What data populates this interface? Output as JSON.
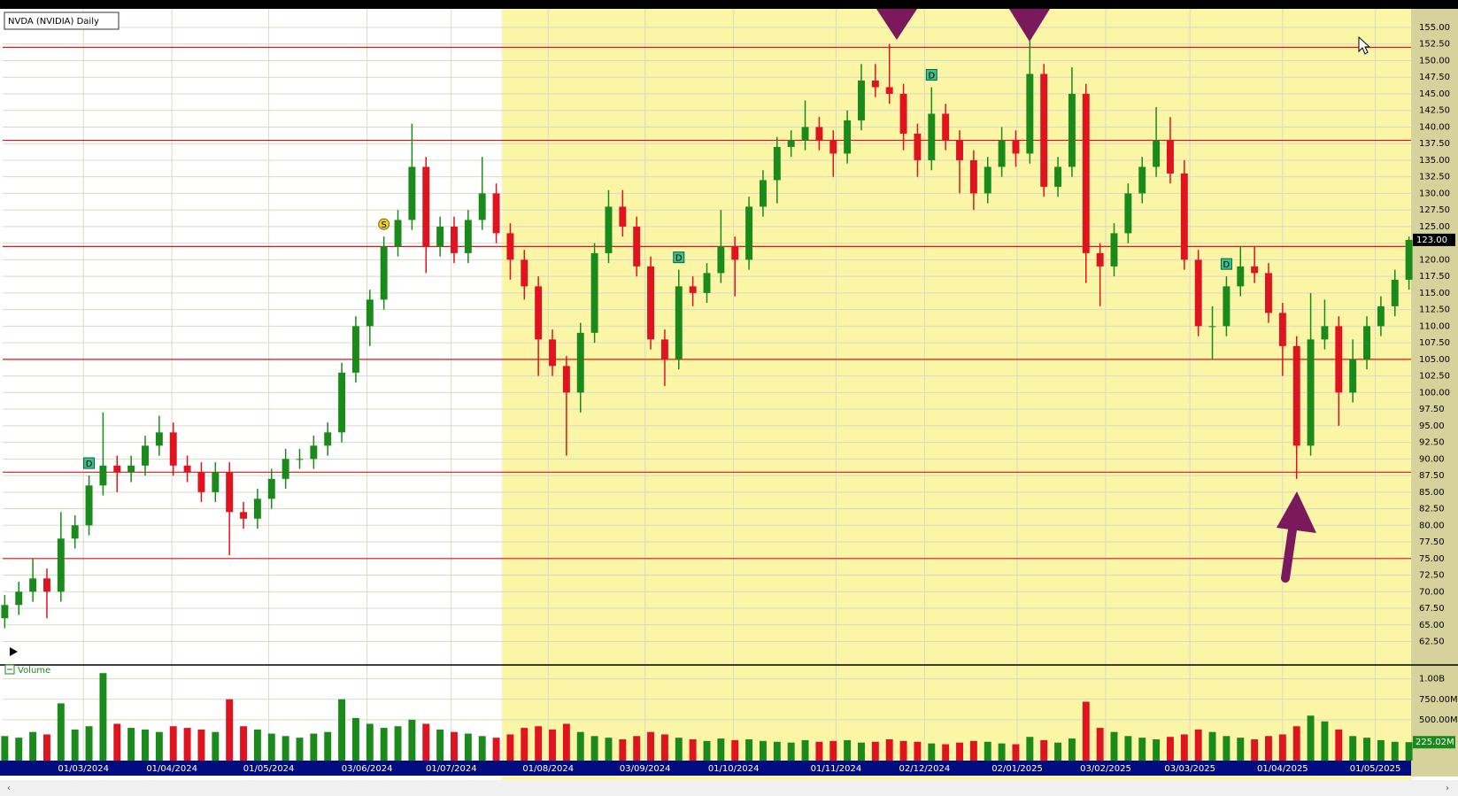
{
  "chart_data": {
    "type": "candlestick",
    "title": "NVDA (NVIDIA) Daily",
    "volume_title": "Volume",
    "open": [
      66,
      68,
      70,
      72,
      70,
      78,
      80,
      86,
      89,
      88,
      89,
      92,
      94,
      89,
      88,
      85,
      88,
      82,
      81,
      84,
      87,
      90,
      90,
      92,
      94,
      103,
      110,
      114,
      122,
      126,
      134,
      122,
      125,
      121,
      126,
      130,
      124,
      120,
      116,
      108,
      104,
      100,
      109,
      121,
      128,
      125,
      119,
      108,
      105,
      116,
      115,
      118,
      122,
      120,
      128,
      132,
      137,
      138,
      140,
      138,
      136,
      141,
      147,
      146,
      145,
      139,
      135,
      142,
      138,
      135,
      130,
      134,
      138,
      136,
      148,
      131,
      134,
      145,
      121,
      119,
      124,
      130,
      134,
      138,
      133,
      120,
      110,
      110,
      116,
      119,
      118,
      112,
      107,
      92,
      108,
      110,
      100,
      105,
      110,
      113,
      117
    ],
    "high": [
      69.5,
      71.5,
      75,
      73.5,
      82,
      81.5,
      87.5,
      97,
      90.5,
      90.5,
      93.5,
      96.5,
      95.5,
      90.5,
      89.5,
      89.5,
      89.5,
      83.5,
      85.5,
      88.5,
      91.5,
      91.5,
      93.5,
      95.5,
      104.5,
      111.5,
      115.5,
      123.5,
      127.5,
      140.5,
      135.5,
      126.5,
      126.5,
      127.5,
      135.5,
      131.5,
      125.5,
      121.5,
      117.5,
      109.5,
      105.5,
      110.5,
      122.5,
      130.5,
      130.5,
      126.5,
      120.5,
      109.5,
      118.5,
      117.5,
      119.5,
      127.5,
      123.5,
      129.5,
      133.5,
      138.5,
      139.5,
      144,
      141.5,
      139.5,
      142.5,
      149.5,
      149.5,
      152.5,
      146.5,
      140.5,
      146,
      143.5,
      139.5,
      136.5,
      135.5,
      140,
      139.5,
      153,
      149.5,
      135.5,
      149,
      146.5,
      122.5,
      125.5,
      131.5,
      135.5,
      143,
      141.5,
      135,
      121.5,
      113,
      117.5,
      122,
      122,
      119.5,
      113.5,
      108.5,
      115,
      114,
      111.5,
      108,
      111.5,
      114.5,
      118.5,
      123.5
    ],
    "low": [
      64.5,
      66.5,
      68.5,
      66,
      68.5,
      76.5,
      78.5,
      84.5,
      85,
      86.5,
      87.5,
      90.5,
      87.5,
      86.5,
      83.5,
      83.5,
      75.5,
      79.5,
      79.5,
      82.5,
      85.5,
      88.5,
      88.5,
      90.5,
      92.5,
      101.5,
      107,
      112.5,
      120.5,
      124.5,
      118,
      120.5,
      119.5,
      119.5,
      124.5,
      122.5,
      117,
      114,
      102.5,
      102.5,
      90.5,
      97,
      107.5,
      119.5,
      123.5,
      117.5,
      106.5,
      101,
      103.5,
      113,
      113.5,
      116.5,
      114.5,
      118.5,
      126.5,
      128.5,
      135.5,
      136.5,
      136.5,
      132.5,
      134.5,
      139.5,
      144.5,
      143.5,
      136.5,
      132.5,
      133.5,
      136.5,
      130,
      127.5,
      128.5,
      132.5,
      134,
      134.5,
      129.5,
      129.5,
      132.5,
      116.5,
      113,
      117.5,
      122.5,
      128.5,
      132.5,
      131.5,
      118.5,
      108.5,
      105,
      108.5,
      114.5,
      116.5,
      110.5,
      102.5,
      87,
      90.5,
      106.5,
      95,
      98.5,
      103.5,
      108.5,
      111.5,
      115.5
    ],
    "close": [
      68,
      70,
      72,
      70,
      78,
      80,
      86,
      89,
      88,
      89,
      92,
      94,
      89,
      88,
      85,
      88,
      82,
      81,
      84,
      87,
      90,
      90,
      92,
      94,
      103,
      110,
      114,
      122,
      126,
      134,
      122,
      125,
      121,
      126,
      130,
      124,
      120,
      116,
      108,
      104,
      100,
      109,
      121,
      128,
      125,
      119,
      108,
      105,
      116,
      115,
      118,
      122,
      120,
      128,
      132,
      137,
      138,
      140,
      138,
      136,
      141,
      147,
      146,
      145,
      139,
      135,
      142,
      138,
      135,
      130,
      134,
      138,
      136,
      148,
      131,
      134,
      145,
      121,
      119,
      124,
      130,
      134,
      138,
      133,
      120,
      110,
      110,
      116,
      119,
      118,
      112,
      107,
      92,
      108,
      110,
      100,
      105,
      110,
      113,
      117,
      123
    ],
    "volume": [
      300,
      280,
      350,
      320,
      700,
      380,
      420,
      1070,
      450,
      400,
      380,
      350,
      420,
      400,
      380,
      350,
      750,
      420,
      380,
      330,
      300,
      280,
      330,
      350,
      750,
      520,
      450,
      400,
      420,
      500,
      450,
      380,
      350,
      330,
      300,
      280,
      320,
      400,
      420,
      380,
      450,
      350,
      300,
      280,
      260,
      300,
      350,
      320,
      280,
      260,
      240,
      270,
      250,
      260,
      240,
      230,
      220,
      250,
      230,
      240,
      250,
      220,
      230,
      260,
      240,
      230,
      210,
      200,
      220,
      240,
      230,
      210,
      200,
      290,
      250,
      220,
      270,
      720,
      400,
      350,
      300,
      280,
      260,
      290,
      320,
      380,
      350,
      300,
      280,
      260,
      300,
      320,
      420,
      550,
      480,
      380,
      300,
      280,
      250,
      230,
      225.02
    ],
    "close_label": "123.00",
    "volume_label": "225.02M",
    "up_color": "#1a8a1a",
    "down_color": "#e0141e",
    "xlim": [
      -0.15,
      100.15
    ],
    "xticks": [
      {
        "value": 5.6,
        "label": "01/03/2024"
      },
      {
        "value": 11.9,
        "label": "01/04/2024"
      },
      {
        "value": 18.8,
        "label": "01/05/2024"
      },
      {
        "value": 25.8,
        "label": "03/06/2024"
      },
      {
        "value": 31.8,
        "label": "01/07/2024"
      },
      {
        "value": 38.7,
        "label": "01/08/2024"
      },
      {
        "value": 45.6,
        "label": "03/09/2024"
      },
      {
        "value": 51.9,
        "label": "01/10/2024"
      },
      {
        "value": 59.2,
        "label": "01/11/2024"
      },
      {
        "value": 65.5,
        "label": "02/12/2024"
      },
      {
        "value": 72.1,
        "label": "02/01/2025"
      },
      {
        "value": 78.4,
        "label": "03/02/2025"
      },
      {
        "value": 84.4,
        "label": "03/03/2025"
      },
      {
        "value": 91.0,
        "label": "01/04/2025"
      },
      {
        "value": 97.6,
        "label": "01/05/2025"
      }
    ],
    "ylim": [
      59.1,
      157.8
    ],
    "yticks": [
      {
        "value": 62.5,
        "label": "62.50"
      },
      {
        "value": 65,
        "label": "65.00"
      },
      {
        "value": 67.5,
        "label": "67.50"
      },
      {
        "value": 70,
        "label": "70.00"
      },
      {
        "value": 72.5,
        "label": "72.50"
      },
      {
        "value": 75,
        "label": "75.00"
      },
      {
        "value": 77.5,
        "label": "77.50"
      },
      {
        "value": 80,
        "label": "80.00"
      },
      {
        "value": 82.5,
        "label": "82.50"
      },
      {
        "value": 85,
        "label": "85.00"
      },
      {
        "value": 87.5,
        "label": "87.50"
      },
      {
        "value": 90,
        "label": "90.00"
      },
      {
        "value": 92.5,
        "label": "92.50"
      },
      {
        "value": 95,
        "label": "95.00"
      },
      {
        "value": 97.5,
        "label": "97.50"
      },
      {
        "value": 100,
        "label": "100.00"
      },
      {
        "value": 102.5,
        "label": "102.50"
      },
      {
        "value": 105,
        "label": "105.00"
      },
      {
        "value": 107.5,
        "label": "107.50"
      },
      {
        "value": 110,
        "label": "110.00"
      },
      {
        "value": 112.5,
        "label": "112.50"
      },
      {
        "value": 115,
        "label": "115.00"
      },
      {
        "value": 117.5,
        "label": "117.50"
      },
      {
        "value": 120,
        "label": "120.00"
      },
      {
        "value": 122.5,
        "label": "122.50"
      },
      {
        "value": 125,
        "label": "125.00"
      },
      {
        "value": 127.5,
        "label": "127.50"
      },
      {
        "value": 130,
        "label": "130.00"
      },
      {
        "value": 132.5,
        "label": "132.50"
      },
      {
        "value": 135,
        "label": "135.00"
      },
      {
        "value": 137.5,
        "label": "137.50"
      },
      {
        "value": 140,
        "label": "140.00"
      },
      {
        "value": 142.5,
        "label": "142.50"
      },
      {
        "value": 145,
        "label": "145.00"
      },
      {
        "value": 147.5,
        "label": "147.50"
      },
      {
        "value": 150,
        "label": "150.00"
      },
      {
        "value": 152.5,
        "label": "152.50"
      },
      {
        "value": 155,
        "label": "155.00"
      }
    ],
    "vlim": [
      0,
      1159
    ],
    "vticks": [
      {
        "value": 500,
        "label": "500.00M"
      },
      {
        "value": 750,
        "label": "750.00M"
      },
      {
        "value": 1000,
        "label": "1.00B"
      }
    ],
    "hlines": [
      152,
      138,
      122,
      105,
      88,
      75
    ],
    "hline_color": "#e0141e",
    "events": [
      {
        "x": 6,
        "label": "D"
      },
      {
        "x": 27,
        "label": "S"
      },
      {
        "x": 48,
        "label": "D"
      },
      {
        "x": 66,
        "label": "D"
      },
      {
        "x": 87,
        "label": "D"
      }
    ],
    "grid": true
  }
}
